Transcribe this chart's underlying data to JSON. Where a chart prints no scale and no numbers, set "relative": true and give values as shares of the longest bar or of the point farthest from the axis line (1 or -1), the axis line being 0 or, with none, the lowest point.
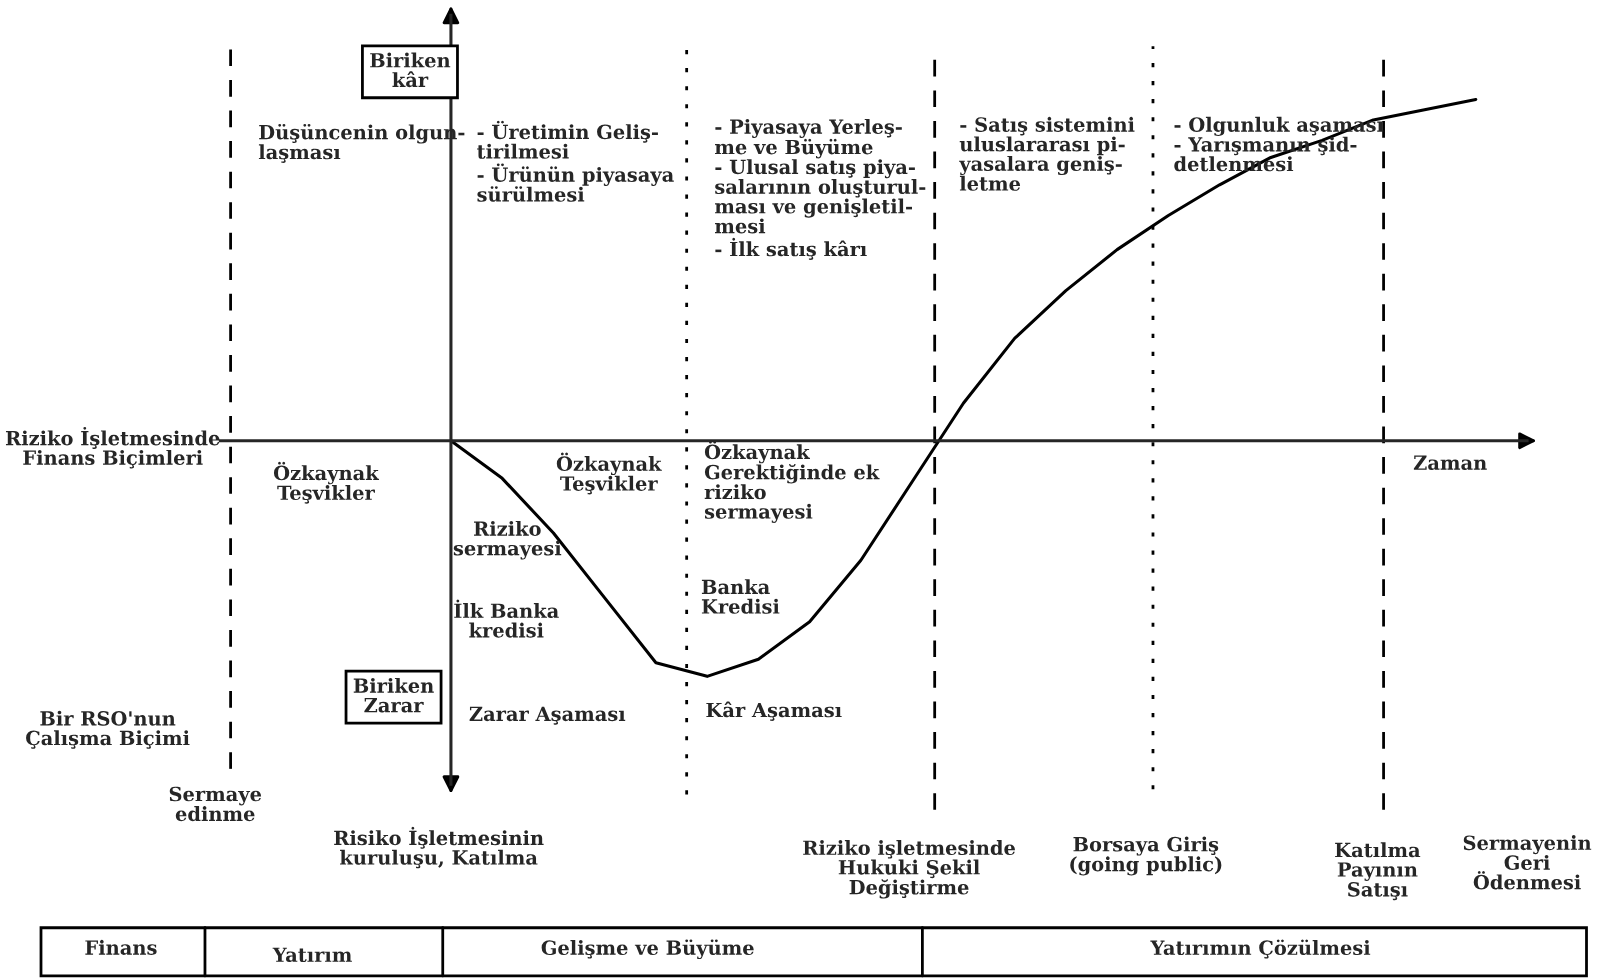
{
  "chart_data": {
    "type": "line",
    "relative": true,
    "xlabel": "Zaman",
    "categories": [
      null,
      null,
      null,
      null,
      null,
      null,
      null,
      null,
      null,
      null,
      null,
      null,
      null,
      null,
      null,
      null,
      null,
      null,
      null,
      null,
      null,
      null,
      null,
      null,
      null,
      null
    ],
    "series": [
      {
        "color": "#000000",
        "values": [
          null,
          null,
          null,
          null,
          0,
          -0.11,
          -0.27,
          -0.46,
          -0.65,
          -0.69,
          -0.64,
          -0.53,
          -0.35,
          -0.12,
          0.11,
          0.3,
          0.44,
          0.56,
          0.66,
          0.75,
          0.83,
          0.88,
          0.94,
          0.97,
          1,
          null
        ]
      }
    ],
    "marker": "none",
    "line_style": "solid",
    "annotations": [
      "Biriken\nkâr",
      "Düşüncenin olgun-\nlaşması",
      "- Üretimin Geliş-\ntirilmesi\n- Ürünün piyasaya\nsürülmesi",
      "- Piyasaya Yerleş-\nme ve Büyüme\n- Ulusal satış piya-\nsalarının oluşturul-\nması ve genişletil-\nmesi\n- İlk satış kârı",
      "- Satış sistemini\nuluslararası pi-\nyasalara geniş-\nletme",
      "- Olgunluk aşaması\n- Yarışmanın şid-\ndetlenmesi",
      "Riziko İşletmesinde\nFinans Biçimleri",
      "Özkaynak\nTeşvikler",
      "Özkaynak\nTeşvikler",
      "Özkaynak\nGerektiğinde ek\nriziko\nsermayesi",
      "Riziko\nsermayesi",
      "İlk Banka\nkredisi",
      "Banka\nKredisi",
      "Biriken\nZarar",
      "Zarar Aşaması",
      "Kâr Aşaması",
      "Bir RSO'nun\nÇalışma Biçimi",
      "Sermaye\nedinme",
      "Risiko İşletmesinin\nkuruluşu, Katılma",
      "Riziko işletmesinde\nHukuki Şekil\nDeğiştirme",
      "Borsaya Giriş\n(going public)",
      "Katılma\nPayının\nSatışı",
      "Sermayenin\nGeri\nÖdenmesi",
      "Finans",
      "Yatırım",
      "Gelişme ve Büyüme",
      "Yatırımın Çözülmesi"
    ]
  }
}
